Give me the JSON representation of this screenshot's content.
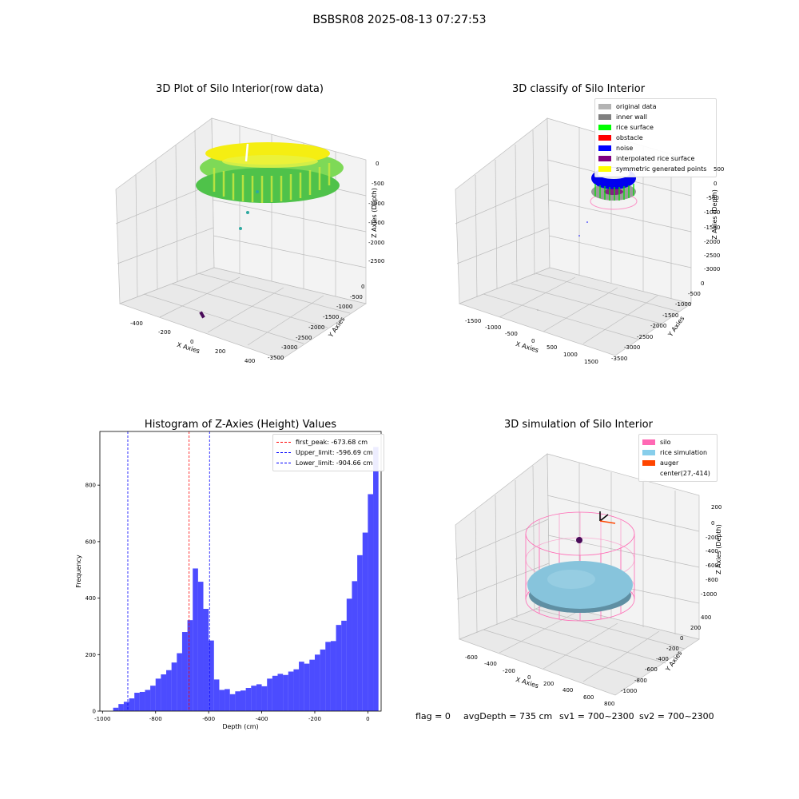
{
  "suptitle": "BSBSR08 2025-08-13 07:27:53",
  "colors": {
    "yellow": "#f5ee12",
    "green": "#58cc3a",
    "teal": "#2ea8a0",
    "purple": "#4a0b5a",
    "blue": "#0000ff",
    "gray": "#8a8a8a",
    "pink": "#ff69b4",
    "sky": "#87c4dc"
  },
  "panel_raw": {
    "title": "3D Plot of Silo Interior(row data)",
    "x_label": "X Axies",
    "y_label": "Y Axies",
    "z_label": "Z Axies (Depth)",
    "x_ticks": [
      "-400",
      "-200",
      "0",
      "200",
      "400"
    ],
    "y_ticks": [
      "0",
      "-500",
      "-1000",
      "-1500",
      "-2000",
      "-2500",
      "-3000",
      "-3500"
    ],
    "z_ticks": [
      "0",
      "-500",
      "-1000",
      "-1500",
      "-2000",
      "-2500"
    ]
  },
  "panel_classify": {
    "title": "3D classify of Silo Interior",
    "x_label": "X Axies",
    "y_label": "Y Axies",
    "z_label": "Z Axies (Depth)",
    "x_ticks": [
      "-1500",
      "-1000",
      "-500",
      "0",
      "500",
      "1000",
      "1500"
    ],
    "y_ticks": [
      "0",
      "-500",
      "-1000",
      "-1500",
      "-2000",
      "-2500",
      "-3000",
      "-3500"
    ],
    "z_ticks": [
      "500",
      "0",
      "-500",
      "-1000",
      "-1500",
      "-2000",
      "-2500",
      "-3000"
    ],
    "legend": [
      {
        "label": "original data",
        "color": "#b3b3b3"
      },
      {
        "label": "inner wall",
        "color": "#808080"
      },
      {
        "label": "rice surface",
        "color": "#00ff00"
      },
      {
        "label": "obstacle",
        "color": "#ff0000"
      },
      {
        "label": "noise",
        "color": "#0000ff"
      },
      {
        "label": "interpolated rice surface",
        "color": "#800080"
      },
      {
        "label": "symmetric generated points",
        "color": "#ffff00"
      }
    ]
  },
  "panel_sim": {
    "title": "3D simulation of Silo Interior",
    "x_label": "X Axies",
    "y_label": "Y Axies",
    "z_label": "Z Axies (Depth)",
    "x_ticks": [
      "-600",
      "-400",
      "-200",
      "0",
      "200",
      "400",
      "600",
      "800"
    ],
    "y_ticks": [
      "400",
      "200",
      "0",
      "-200",
      "-400",
      "-600",
      "-800",
      "-1000"
    ],
    "z_ticks": [
      "200",
      "0",
      "-200",
      "-400",
      "-600",
      "-800",
      "-1000"
    ],
    "legend": [
      {
        "label": "silo",
        "color": "#ff69b4"
      },
      {
        "label": "rice simulation",
        "color": "#87ceeb"
      },
      {
        "label": "auger",
        "color": "#ff4500"
      },
      {
        "label": "center(27,-414)",
        "color": ""
      }
    ]
  },
  "status": {
    "flag": "flag = 0",
    "avg": "avgDepth = 735 cm",
    "sv1": "sv1 = 700~2300",
    "sv2": "sv2 = 700~2300"
  },
  "chart_data": {
    "type": "bar",
    "title": "Histogram of Z-Axies (Height) Values",
    "xlabel": "Depth (cm)",
    "ylabel": "Frequency",
    "xlim": [
      -1010,
      50
    ],
    "ylim": [
      0,
      990
    ],
    "x_ticks": [
      -1000,
      -800,
      -600,
      -400,
      -200,
      0
    ],
    "y_ticks": [
      0,
      200,
      400,
      600,
      800
    ],
    "bin_start": -960,
    "bin_width": 20,
    "values": [
      12,
      25,
      33,
      45,
      65,
      68,
      75,
      90,
      115,
      130,
      145,
      172,
      205,
      280,
      322,
      505,
      458,
      362,
      250,
      112,
      75,
      78,
      60,
      70,
      73,
      82,
      90,
      95,
      88,
      115,
      125,
      132,
      128,
      140,
      148,
      175,
      168,
      182,
      200,
      218,
      245,
      248,
      305,
      320,
      398,
      460,
      552,
      632,
      768,
      935
    ],
    "bar_color": "#0000ff",
    "lines": [
      {
        "label": "first_peak: -673.68 cm",
        "x": -673.68,
        "color": "#ff0000"
      },
      {
        "label": "Upper_limit: -596.69 cm",
        "x": -596.69,
        "color": "#0000ff"
      },
      {
        "label": "Lower_limit: -904.66 cm",
        "x": -904.66,
        "color": "#0000ff"
      }
    ],
    "legend_position": "top-right"
  }
}
